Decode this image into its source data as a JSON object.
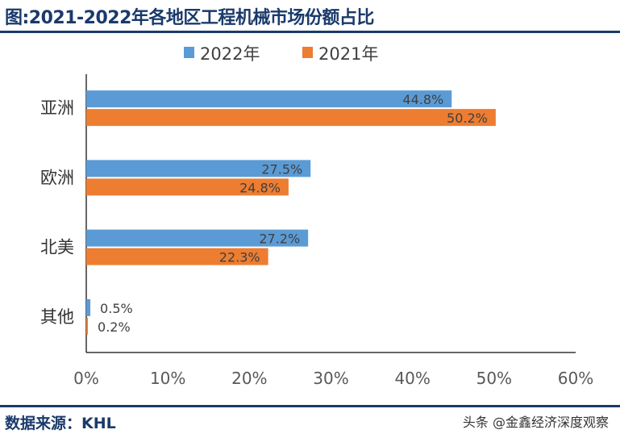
{
  "header": {
    "title": "图:2021-2022年各地区工程机械市场份额占比"
  },
  "footer": {
    "source": "数据来源：KHL",
    "watermark": "头条 @金鑫经济深度观察"
  },
  "chart_data": {
    "type": "bar",
    "orientation": "horizontal",
    "title": "图:2021-2022年各地区工程机械市场份额占比",
    "categories": [
      "亚洲",
      "欧洲",
      "北美",
      "其他"
    ],
    "series": [
      {
        "name": "2022年",
        "color": "#5b9bd5",
        "values": [
          44.8,
          27.5,
          27.2,
          0.5
        ],
        "labels": [
          "44.8%",
          "27.5%",
          "27.2%",
          "0.5%"
        ]
      },
      {
        "name": "2021年",
        "color": "#ed7d31",
        "values": [
          50.2,
          24.8,
          22.3,
          0.2
        ],
        "labels": [
          "50.2%",
          "24.8%",
          "22.3%",
          "0.2%"
        ]
      }
    ],
    "xlim": [
      0,
      60
    ],
    "xticks": [
      "0%",
      "10%",
      "20%",
      "30%",
      "40%",
      "50%",
      "60%"
    ],
    "legend": "top",
    "grid": false
  }
}
